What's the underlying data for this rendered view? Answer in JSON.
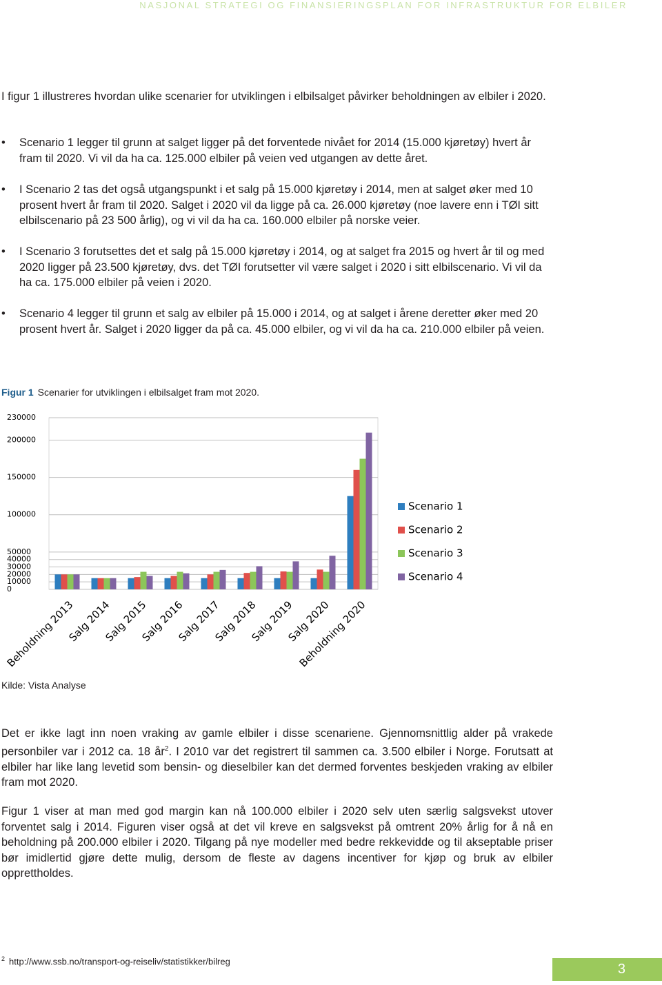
{
  "header": "NASJONAL STRATEGI OG FINANSIERINGSPLAN FOR INFRASTRUKTUR FOR ELBILER",
  "intro": "I figur 1 illustreres hvordan ulike scenarier for utviklingen i elbilsalget påvirker beholdningen av elbiler i 2020.",
  "bullets": [
    "Scenario 1 legger til grunn at salget ligger på det forventede nivået for 2014 (15.000 kjøretøy) hvert år fram til 2020. Vi vil da ha ca. 125.000 elbiler på veien ved utgangen av dette året.",
    "I Scenario 2 tas det også utgangspunkt i et salg på 15.000 kjøretøy i 2014, men at salget øker med 10 prosent hvert år fram til 2020. Salget i 2020 vil da ligge på ca. 26.000 kjøretøy (noe lavere enn i TØI sitt elbilscenario på 23 500 årlig), og vi vil da ha ca. 160.000 elbiler på norske veier.",
    "I Scenario 3 forutsettes det et salg på 15.000 kjøretøy i 2014, og at salget fra 2015 og hvert år til og med 2020 ligger på 23.500 kjøretøy, dvs. det TØI forutsetter vil være salget i 2020 i sitt elbilscenario. Vi vil da ha ca. 175.000 elbiler på veien i 2020.",
    "Scenario 4 legger til grunn et salg av elbiler på 15.000 i 2014, og at salget i årene deretter øker med 20 prosent hvert år. Salget i 2020 ligger da på ca. 45.000 elbiler, og vi vil da ha ca. 210.000 elbiler på veien."
  ],
  "figure": {
    "label": "Figur 1",
    "caption": "Scenarier for utviklingen i elbilsalget fram mot 2020."
  },
  "chart_data": {
    "type": "bar",
    "categories": [
      "Beholdning 2013",
      "Salg 2014",
      "Salg 2015",
      "Salg 2016",
      "Salg 2017",
      "Salg 2018",
      "Salg 2019",
      "Salg 2020",
      "Beholdning 2020"
    ],
    "series": [
      {
        "name": "Scenario 1",
        "color": "#2e7ebf",
        "values": [
          20000,
          15000,
          15000,
          15000,
          15000,
          15000,
          15000,
          15000,
          125000
        ]
      },
      {
        "name": "Scenario 2",
        "color": "#e0504b",
        "values": [
          20000,
          15000,
          16500,
          18000,
          20000,
          22000,
          24000,
          26500,
          160000
        ]
      },
      {
        "name": "Scenario 3",
        "color": "#8cc65a",
        "values": [
          20000,
          15000,
          23500,
          23500,
          23500,
          23500,
          23500,
          23500,
          175000
        ]
      },
      {
        "name": "Scenario 4",
        "color": "#8064a2",
        "values": [
          20000,
          15000,
          18000,
          21500,
          26000,
          31000,
          37500,
          45000,
          210000
        ]
      }
    ],
    "ylim": [
      0,
      230000
    ],
    "yticks": [
      0,
      10000,
      20000,
      30000,
      40000,
      50000,
      100000,
      150000,
      200000,
      230000
    ],
    "grid": true,
    "legend": "right"
  },
  "source": "Kilde: Vista Analyse",
  "paragraph_1": {
    "text_a": "Det er ikke lagt inn noen vraking av gamle elbiler i disse scenariene. Gjennomsnittlig alder på vrakede personbiler var i 2012 ca. 18 år",
    "sup": "2",
    "text_b": ". I 2010 var det registrert til sammen ca. 3.500 elbiler i Norge. Forutsatt at elbiler har like lang levetid som bensin- og dieselbiler kan det dermed forventes beskjeden vraking av elbiler fram mot 2020."
  },
  "paragraph_2": "Figur 1 viser at man med god margin kan nå 100.000 elbiler i 2020 selv uten særlig salgsvekst utover forventet salg i 2014. Figuren viser også at det vil kreve en salgsvekst på omtrent 20% årlig for å nå en beholdning på 200.000 elbiler i 2020. Tilgang på nye modeller med bedre rekkevidde og til akseptable priser bør imidlertid gjøre dette mulig, dersom de fleste av dagens incentiver for kjøp og bruk av elbiler opprettholdes.",
  "footnote": {
    "marker": "2",
    "text": "http://www.ssb.no/transport-og-reiseliv/statistikker/bilreg"
  },
  "page_number": "3"
}
